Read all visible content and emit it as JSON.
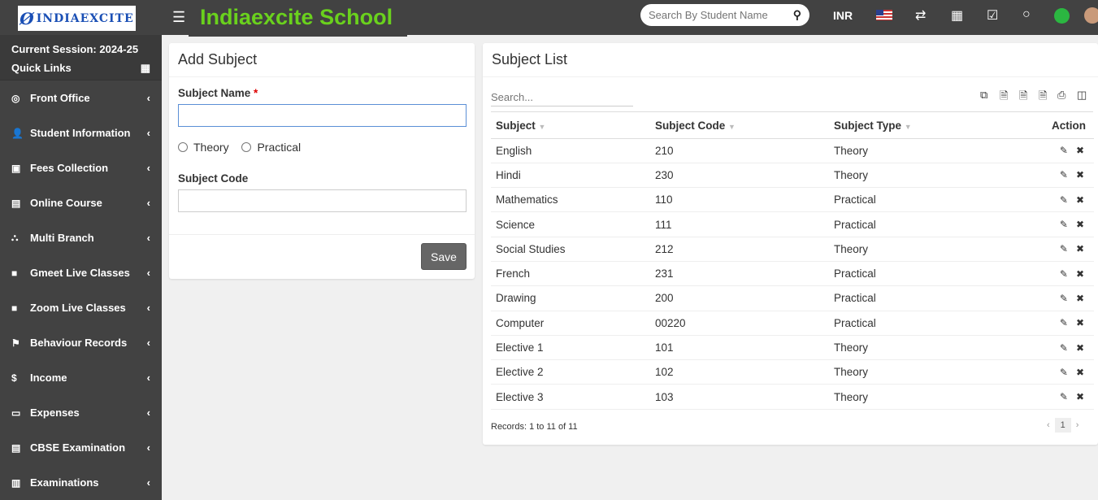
{
  "header": {
    "logo": "INDIAEXCITE",
    "title": "Indiaexcite School",
    "search_placeholder": "Search By Student Name",
    "currency": "INR",
    "icons": [
      "menu-icon",
      "search-icon",
      "us-flag-icon",
      "swap-icon",
      "calendar-icon",
      "checkbox-icon",
      "chat-icon",
      "whatsapp-icon",
      "avatar"
    ]
  },
  "sidebar": {
    "session": "Current Session: 2024-25",
    "quick_links": "Quick Links",
    "items": [
      {
        "label": "Front Office",
        "icon": "◎"
      },
      {
        "label": "Student Information",
        "icon": "👤"
      },
      {
        "label": "Fees Collection",
        "icon": "▣"
      },
      {
        "label": "Online Course",
        "icon": "▤"
      },
      {
        "label": "Multi Branch",
        "icon": "⛬"
      },
      {
        "label": "Gmeet Live Classes",
        "icon": "■"
      },
      {
        "label": "Zoom Live Classes",
        "icon": "■"
      },
      {
        "label": "Behaviour Records",
        "icon": "⚑"
      },
      {
        "label": "Income",
        "icon": "$"
      },
      {
        "label": "Expenses",
        "icon": "▭"
      },
      {
        "label": "CBSE Examination",
        "icon": "▤"
      },
      {
        "label": "Examinations",
        "icon": "▥"
      }
    ]
  },
  "add_subject": {
    "title": "Add Subject",
    "name_label": "Subject Name",
    "required": "*",
    "name_value": "",
    "radio_theory": "Theory",
    "radio_practical": "Practical",
    "code_label": "Subject Code",
    "code_value": "",
    "save": "Save"
  },
  "subject_list": {
    "title": "Subject List",
    "search_placeholder": "Search...",
    "columns": [
      "Subject",
      "Subject Code",
      "Subject Type",
      "Action"
    ],
    "rows": [
      [
        "English",
        "210",
        "Theory"
      ],
      [
        "Hindi",
        "230",
        "Theory"
      ],
      [
        "Mathematics",
        "110",
        "Practical"
      ],
      [
        "Science",
        "111",
        "Practical"
      ],
      [
        "Social Studies",
        "212",
        "Theory"
      ],
      [
        "French",
        "231",
        "Practical"
      ],
      [
        "Drawing",
        "200",
        "Practical"
      ],
      [
        "Computer",
        "00220",
        "Practical"
      ],
      [
        "Elective 1",
        "101",
        "Theory"
      ],
      [
        "Elective 2",
        "102",
        "Theory"
      ],
      [
        "Elective 3",
        "103",
        "Theory"
      ]
    ],
    "records": "Records: 1 to 11 of 11",
    "page": "1",
    "prev": "‹",
    "next": "›"
  }
}
